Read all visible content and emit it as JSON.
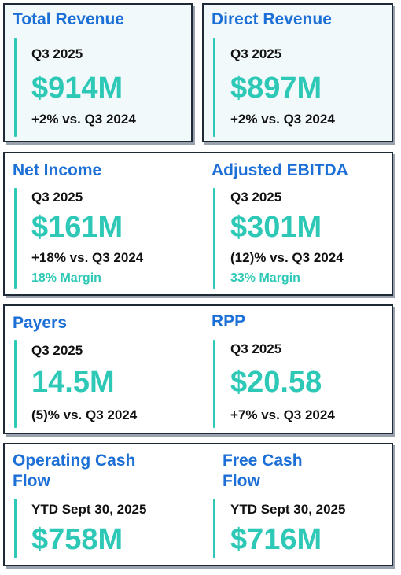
{
  "colors": {
    "title": "#1c6fd6",
    "accent": "#2ec8b6",
    "text": "#111111",
    "border": "#1f2a36",
    "card_tint": "#f1f9fb"
  },
  "total_revenue": {
    "title": "Total Revenue",
    "period": "Q3 2025",
    "value": "$914M",
    "change": "+2% vs. Q3 2024"
  },
  "direct_revenue": {
    "title": "Direct Revenue",
    "period": "Q3 2025",
    "value": "$897M",
    "change": "+2% vs. Q3 2024"
  },
  "net_income": {
    "title": "Net Income",
    "period": "Q3 2025",
    "value": "$161M",
    "change": "+18% vs. Q3 2024",
    "margin": "18% Margin"
  },
  "adjusted_ebitda": {
    "title": "Adjusted EBITDA",
    "period": "Q3 2025",
    "value": "$301M",
    "change": "(12)% vs. Q3 2024",
    "margin": "33% Margin"
  },
  "payers": {
    "title": "Payers",
    "period": "Q3 2025",
    "value": "14.5M",
    "change": "(5)% vs. Q3 2024"
  },
  "rpp": {
    "title": "RPP",
    "period": "Q3 2025",
    "value": "$20.58",
    "change": "+7% vs. Q3 2024"
  },
  "operating_cash_flow": {
    "title_line1": "Operating Cash",
    "title_line2": "Flow",
    "period": "YTD Sept 30, 2025",
    "value": "$758M"
  },
  "free_cash_flow": {
    "title_line1": "Free Cash",
    "title_line2": "Flow",
    "period": "YTD Sept 30, 2025",
    "value": "$716M"
  }
}
